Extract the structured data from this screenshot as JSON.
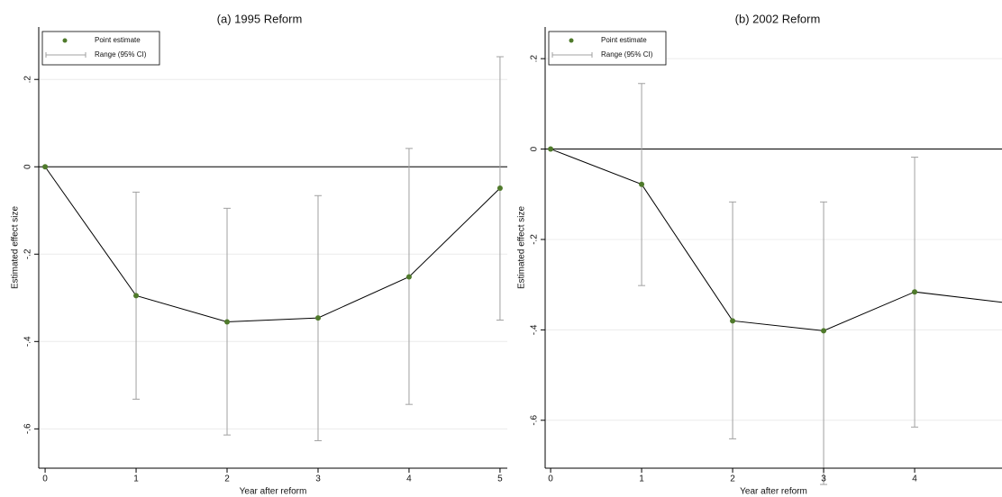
{
  "chart_data": [
    {
      "type": "errorbar",
      "title": "(a) 1995 Reform",
      "x_label": "Year after reform",
      "y_label": "Estimated effect size",
      "x": [
        0,
        1,
        2,
        3,
        4,
        5
      ],
      "series": [
        {
          "name": "Point estimate",
          "color": "#4f7a2b",
          "values": [
            0,
            -0.295,
            -0.355,
            -0.346,
            -0.252,
            -0.049
          ]
        }
      ],
      "ci": {
        "name": "Range (95% CI)",
        "color": "#a0a0a0",
        "lower": [
          null,
          -0.532,
          -0.614,
          -0.627,
          -0.544,
          -0.351
        ],
        "upper": [
          null,
          -0.058,
          -0.095,
          -0.066,
          0.042,
          0.252
        ]
      },
      "xlim": [
        -0.07,
        5.08
      ],
      "ylim": [
        -0.69,
        0.32
      ],
      "xticks": [
        0,
        1,
        2,
        3,
        4,
        5
      ],
      "yticks": [
        {
          "value": 0.2,
          "label": ".2"
        },
        0,
        {
          "value": -0.2,
          "label": "-.2"
        },
        {
          "value": -0.4,
          "label": "-.4"
        },
        {
          "value": -0.6,
          "label": "-.6"
        }
      ],
      "grid": true
    },
    {
      "type": "errorbar",
      "title": "(b) 2002 Reform",
      "x_label": "Year after reform",
      "y_label": "Estimated effect size",
      "x": [
        0,
        1,
        2,
        3,
        4,
        5
      ],
      "series": [
        {
          "name": "Point estimate",
          "color": "#4f7a2b",
          "values": [
            0,
            -0.078,
            -0.38,
            -0.402,
            -0.316,
            -0.34
          ]
        }
      ],
      "ci": {
        "name": "Range (95% CI)",
        "color": "#a0a0a0",
        "lower": [
          null,
          -0.302,
          -0.641,
          -0.742,
          -0.615,
          null
        ],
        "upper": [
          null,
          0.145,
          -0.117,
          -0.117,
          -0.018,
          null
        ]
      },
      "xlim": [
        -0.06,
        4.96
      ],
      "ylim": [
        -0.706,
        0.27
      ],
      "xticks": [
        0,
        1,
        2,
        3,
        4
      ],
      "yticks": [
        {
          "value": 0.2,
          "label": ".2"
        },
        0,
        {
          "value": -0.2,
          "label": "-.2"
        },
        {
          "value": -0.4,
          "label": "-.4"
        },
        {
          "value": -0.6,
          "label": "-.6"
        }
      ],
      "grid": true
    }
  ]
}
